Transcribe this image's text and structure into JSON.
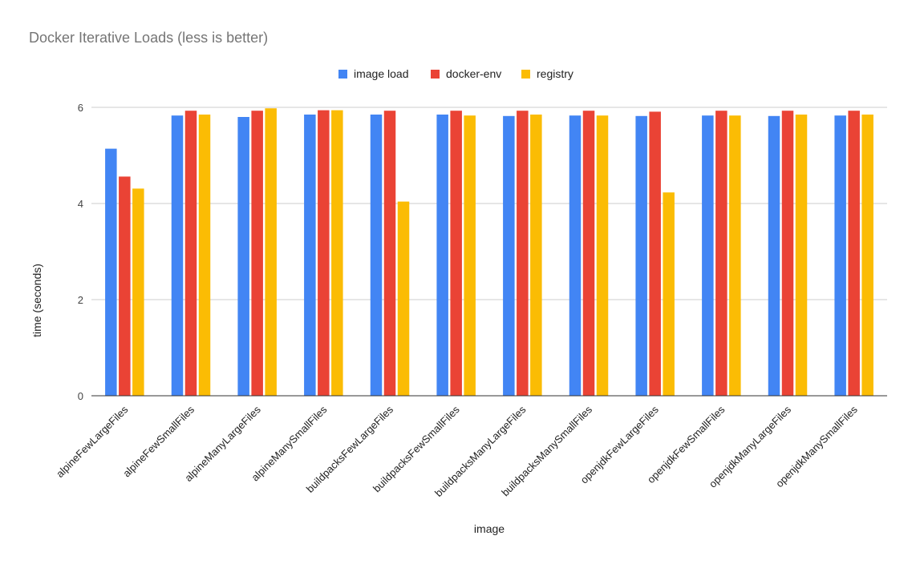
{
  "chart_data": {
    "type": "bar",
    "title": "Docker Iterative Loads (less is better)",
    "xlabel": "image",
    "ylabel": "time (seconds)",
    "ylim": [
      0,
      6
    ],
    "yticks": [
      0,
      2,
      4,
      6
    ],
    "grid": true,
    "legend_position": "top",
    "categories": [
      "alpineFewLargeFiles",
      "alpineFewSmallFiles",
      "alpineManyLargeFiles",
      "alpineManySmallFiles",
      "buildpacksFewLargeFiles",
      "buildpacksFewSmallFiles",
      "buildpacksManyLargeFiles",
      "buildpacksManySmallFiles",
      "openjdkFewLargeFiles",
      "openjdkFewSmallFiles",
      "openjdkManyLargeFiles",
      "openjdkManySmallFiles"
    ],
    "series": [
      {
        "name": "image load",
        "color": "#4285F4",
        "values": [
          5.14,
          5.83,
          5.8,
          5.85,
          5.85,
          5.85,
          5.82,
          5.83,
          5.82,
          5.83,
          5.82,
          5.83
        ]
      },
      {
        "name": "docker-env",
        "color": "#EA4335",
        "values": [
          4.56,
          5.93,
          5.93,
          5.94,
          5.93,
          5.93,
          5.93,
          5.93,
          5.91,
          5.93,
          5.93,
          5.93
        ]
      },
      {
        "name": "registry",
        "color": "#FBBC04",
        "values": [
          4.31,
          5.85,
          5.98,
          5.94,
          4.04,
          5.83,
          5.85,
          5.83,
          4.23,
          5.83,
          5.85,
          5.85
        ]
      }
    ]
  }
}
